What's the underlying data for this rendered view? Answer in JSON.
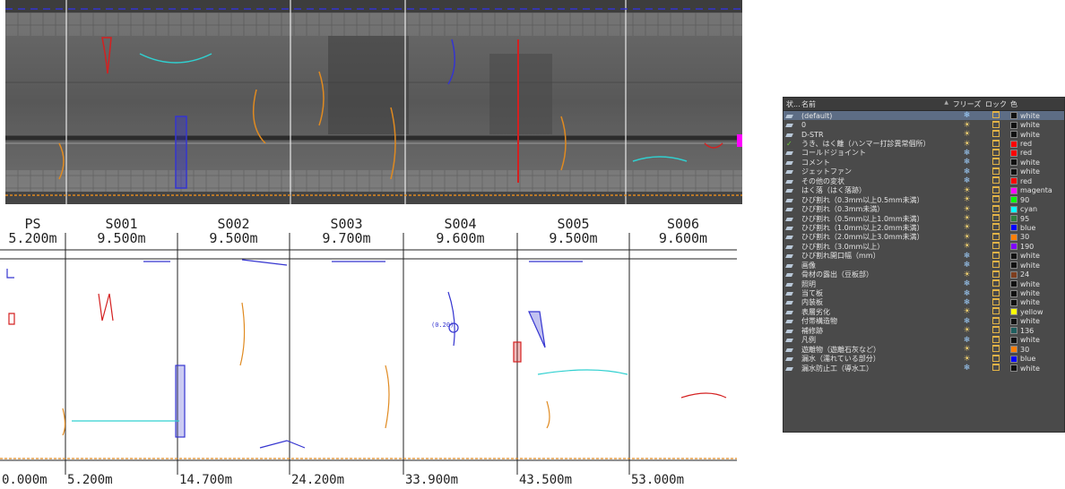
{
  "drawing": {
    "spans": [
      {
        "name": "PS",
        "length": "5.200m"
      },
      {
        "name": "S001",
        "length": "9.500m"
      },
      {
        "name": "S002",
        "length": "9.500m"
      },
      {
        "name": "S003",
        "length": "9.700m"
      },
      {
        "name": "S004",
        "length": "9.600m"
      },
      {
        "name": "S005",
        "length": "9.500m"
      },
      {
        "name": "S006",
        "length": "9.600m"
      }
    ],
    "chainages": [
      "0.000m",
      "5.200m",
      "14.700m",
      "24.200m",
      "33.900m",
      "43.500m",
      "53.000m"
    ],
    "annotation": "(0.20)"
  },
  "layer_panel": {
    "columns": {
      "state": "状...",
      "name": "名前",
      "freeze": "フリーズ",
      "lock": "ロック",
      "color": "色"
    },
    "sort_indicator": "▲",
    "rows": [
      {
        "name": "(default)",
        "freeze": "snow",
        "color": "white",
        "hex": "#111111",
        "selected": true
      },
      {
        "name": "0",
        "freeze": "sun",
        "color": "white",
        "hex": "#111111"
      },
      {
        "name": "D-STR",
        "freeze": "sun",
        "color": "white",
        "hex": "#111111"
      },
      {
        "name": "うき、はく離（ハンマー打診異常個所）",
        "freeze": "sun",
        "color": "red",
        "hex": "#ff0000",
        "state": "check"
      },
      {
        "name": "コールドジョイント",
        "freeze": "snow",
        "color": "red",
        "hex": "#ff0000"
      },
      {
        "name": "コメント",
        "freeze": "snow",
        "color": "white",
        "hex": "#111111"
      },
      {
        "name": "ジェットファン",
        "freeze": "snow",
        "color": "white",
        "hex": "#111111"
      },
      {
        "name": "その他の変状",
        "freeze": "snow",
        "color": "red",
        "hex": "#ff0000"
      },
      {
        "name": "はく落（はく落跡）",
        "freeze": "sun",
        "color": "magenta",
        "hex": "#ff00ff"
      },
      {
        "name": "ひび割れ（0.3mm以上0.5mm未満）",
        "freeze": "sun",
        "color": "90",
        "hex": "#00ff00"
      },
      {
        "name": "ひび割れ（0.3mm未満）",
        "freeze": "sun",
        "color": "cyan",
        "hex": "#00ffff"
      },
      {
        "name": "ひび割れ（0.5mm以上1.0mm未満）",
        "freeze": "sun",
        "color": "95",
        "hex": "#2f7f3f"
      },
      {
        "name": "ひび割れ（1.0mm以上2.0mm未満）",
        "freeze": "sun",
        "color": "blue",
        "hex": "#0000ff"
      },
      {
        "name": "ひび割れ（2.0mm以上3.0mm未満）",
        "freeze": "sun",
        "color": "30",
        "hex": "#ff7f00"
      },
      {
        "name": "ひび割れ（3.0mm以上）",
        "freeze": "sun",
        "color": "190",
        "hex": "#7f00ff"
      },
      {
        "name": "ひび割れ開口幅（mm）",
        "freeze": "snow",
        "color": "white",
        "hex": "#111111"
      },
      {
        "name": "画像",
        "freeze": "snow",
        "color": "white",
        "hex": "#111111"
      },
      {
        "name": "骨材の露出（豆板部）",
        "freeze": "sun",
        "color": "24",
        "hex": "#7f3f1f"
      },
      {
        "name": "照明",
        "freeze": "snow",
        "color": "white",
        "hex": "#111111"
      },
      {
        "name": "当て板",
        "freeze": "snow",
        "color": "white",
        "hex": "#111111"
      },
      {
        "name": "内装板",
        "freeze": "snow",
        "color": "white",
        "hex": "#111111"
      },
      {
        "name": "表層劣化",
        "freeze": "sun",
        "color": "yellow",
        "hex": "#ffff00"
      },
      {
        "name": "付帯構造物",
        "freeze": "snow",
        "color": "white",
        "hex": "#111111"
      },
      {
        "name": "補修跡",
        "freeze": "sun",
        "color": "136",
        "hex": "#1f5f5f"
      },
      {
        "name": "凡例",
        "freeze": "snow",
        "color": "white",
        "hex": "#111111"
      },
      {
        "name": "遊離物（遊離石灰など）",
        "freeze": "sun",
        "color": "30",
        "hex": "#ff7f00"
      },
      {
        "name": "漏水（濡れている部分）",
        "freeze": "sun",
        "color": "blue",
        "hex": "#0000ff"
      },
      {
        "name": "漏水防止工（導水工）",
        "freeze": "snow",
        "color": "white",
        "hex": "#111111"
      }
    ]
  }
}
